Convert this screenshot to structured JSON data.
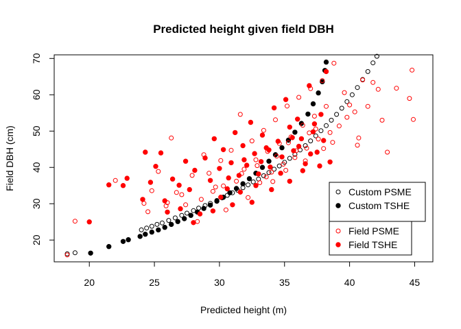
{
  "chart_data": {
    "type": "scatter",
    "title": "Predicted height given field DBH",
    "xlabel": "Predicted height (m)",
    "ylabel": "Field DBH (cm)",
    "xlim": [
      17.3,
      46.4
    ],
    "ylim": [
      14.0,
      71.0
    ],
    "xticks": [
      20,
      25,
      30,
      35,
      40,
      45
    ],
    "yticks": [
      20,
      30,
      40,
      50,
      60,
      70
    ],
    "grid": false,
    "legend_position": "bottom-right",
    "series": [
      {
        "name": "Custom PSME",
        "marker": "open-circle",
        "color": "#000000",
        "points": [
          [
            18.3,
            16.2
          ],
          [
            18.9,
            16.5
          ],
          [
            24.0,
            22.8
          ],
          [
            24.4,
            23.3
          ],
          [
            24.8,
            23.8
          ],
          [
            25.2,
            24.3
          ],
          [
            25.6,
            24.7
          ],
          [
            26.1,
            25.4
          ],
          [
            26.6,
            26.1
          ],
          [
            27.1,
            26.8
          ],
          [
            27.5,
            27.4
          ],
          [
            28.0,
            28.1
          ],
          [
            28.4,
            28.8
          ],
          [
            28.9,
            29.5
          ],
          [
            29.3,
            30.1
          ],
          [
            29.8,
            30.9
          ],
          [
            30.2,
            31.6
          ],
          [
            30.6,
            32.3
          ],
          [
            31.0,
            33.0
          ],
          [
            31.4,
            33.7
          ],
          [
            31.8,
            34.4
          ],
          [
            32.2,
            35.2
          ],
          [
            32.6,
            36.0
          ],
          [
            33.0,
            36.8
          ],
          [
            33.4,
            37.7
          ],
          [
            33.8,
            38.6
          ],
          [
            34.2,
            39.5
          ],
          [
            34.6,
            40.4
          ],
          [
            35.0,
            41.4
          ],
          [
            35.4,
            42.5
          ],
          [
            35.8,
            43.6
          ],
          [
            36.2,
            44.8
          ],
          [
            36.6,
            46.0
          ],
          [
            37.0,
            47.3
          ],
          [
            37.4,
            48.7
          ],
          [
            37.8,
            50.1
          ],
          [
            38.2,
            51.5
          ],
          [
            38.6,
            53.0
          ],
          [
            39.0,
            54.6
          ],
          [
            39.4,
            56.3
          ],
          [
            39.8,
            58.1
          ],
          [
            40.2,
            60.0
          ],
          [
            40.6,
            62.0
          ],
          [
            41.0,
            64.2
          ],
          [
            41.4,
            66.4
          ],
          [
            41.8,
            68.8
          ],
          [
            42.1,
            70.6
          ]
        ]
      },
      {
        "name": "Custom TSHE",
        "marker": "filled-circle",
        "color": "#000000",
        "points": [
          [
            20.1,
            16.4
          ],
          [
            21.5,
            18.2
          ],
          [
            22.6,
            19.6
          ],
          [
            23.0,
            20.1
          ],
          [
            23.9,
            21.0
          ],
          [
            24.3,
            21.6
          ],
          [
            24.8,
            22.2
          ],
          [
            25.3,
            22.8
          ],
          [
            25.8,
            23.5
          ],
          [
            26.3,
            24.3
          ],
          [
            26.8,
            25.1
          ],
          [
            27.3,
            25.9
          ],
          [
            27.8,
            26.8
          ],
          [
            28.3,
            27.7
          ],
          [
            28.8,
            28.7
          ],
          [
            29.3,
            29.6
          ],
          [
            29.8,
            30.7
          ],
          [
            30.3,
            31.8
          ],
          [
            30.8,
            33.0
          ],
          [
            31.3,
            34.2
          ],
          [
            31.8,
            35.5
          ],
          [
            32.3,
            36.9
          ],
          [
            32.8,
            38.4
          ],
          [
            33.3,
            40.0
          ],
          [
            33.8,
            41.7
          ],
          [
            34.3,
            43.5
          ],
          [
            34.8,
            45.4
          ],
          [
            35.3,
            47.5
          ],
          [
            35.8,
            49.7
          ],
          [
            36.3,
            52.1
          ],
          [
            36.8,
            54.7
          ],
          [
            37.2,
            57.5
          ],
          [
            37.6,
            60.5
          ],
          [
            37.9,
            63.6
          ],
          [
            38.1,
            66.7
          ],
          [
            38.2,
            69.0
          ]
        ]
      },
      {
        "name": "Field PSME",
        "marker": "open-circle",
        "color": "#ff0000",
        "points": [
          [
            18.3,
            15.9
          ],
          [
            18.9,
            25.2
          ],
          [
            22.0,
            36.4
          ],
          [
            24.2,
            30.1
          ],
          [
            24.5,
            27.8
          ],
          [
            24.8,
            33.6
          ],
          [
            25.3,
            38.9
          ],
          [
            25.9,
            29.4
          ],
          [
            26.3,
            48.1
          ],
          [
            26.7,
            33.1
          ],
          [
            27.4,
            29.7
          ],
          [
            27.9,
            37.8
          ],
          [
            28.3,
            25.1
          ],
          [
            28.8,
            43.5
          ],
          [
            29.2,
            38.4
          ],
          [
            29.7,
            34.6
          ],
          [
            30.1,
            41.9
          ],
          [
            30.5,
            28.3
          ],
          [
            30.9,
            44.7
          ],
          [
            31.3,
            36.2
          ],
          [
            31.6,
            54.6
          ],
          [
            31.9,
            39.5
          ],
          [
            32.2,
            31.7
          ],
          [
            32.5,
            47.3
          ],
          [
            32.8,
            42.1
          ],
          [
            33.1,
            35.8
          ],
          [
            33.4,
            50.2
          ],
          [
            33.7,
            44.4
          ],
          [
            34.0,
            38.7
          ],
          [
            34.3,
            53.1
          ],
          [
            34.6,
            46.6
          ],
          [
            34.9,
            40.9
          ],
          [
            35.2,
            56.9
          ],
          [
            35.5,
            48.4
          ],
          [
            35.8,
            42.7
          ],
          [
            36.1,
            59.3
          ],
          [
            36.4,
            51.6
          ],
          [
            36.7,
            45.3
          ],
          [
            37.0,
            61.7
          ],
          [
            37.3,
            54.1
          ],
          [
            37.6,
            47.8
          ],
          [
            37.9,
            63.9
          ],
          [
            38.2,
            56.8
          ],
          [
            38.5,
            49.6
          ],
          [
            38.8,
            68.7
          ],
          [
            39.2,
            51.4
          ],
          [
            39.6,
            60.6
          ],
          [
            40.0,
            57.2
          ],
          [
            40.4,
            55.3
          ],
          [
            40.7,
            48.1
          ],
          [
            41.0,
            64.1
          ],
          [
            41.4,
            56.8
          ],
          [
            41.8,
            63.4
          ],
          [
            42.2,
            61.5
          ],
          [
            42.5,
            53.0
          ],
          [
            42.9,
            44.2
          ],
          [
            43.6,
            61.8
          ],
          [
            44.8,
            66.8
          ],
          [
            44.9,
            53.2
          ],
          [
            44.6,
            59.0
          ],
          [
            30.3,
            34.9
          ],
          [
            31.7,
            38.3
          ],
          [
            32.9,
            40.5
          ],
          [
            33.6,
            37.4
          ],
          [
            34.4,
            43.1
          ],
          [
            35.1,
            39.2
          ],
          [
            35.9,
            44.6
          ],
          [
            36.6,
            41.8
          ],
          [
            37.4,
            50.6
          ],
          [
            38.0,
            45.2
          ],
          [
            38.7,
            46.9
          ],
          [
            39.8,
            53.8
          ],
          [
            40.6,
            46.1
          ],
          [
            34.1,
            36.1
          ],
          [
            35.3,
            46.8
          ],
          [
            36.9,
            49.5
          ],
          [
            28.6,
            31.2
          ],
          [
            29.5,
            33.4
          ],
          [
            27.1,
            32.5
          ],
          [
            26.0,
            30.3
          ]
        ]
      },
      {
        "name": "Field TSHE",
        "marker": "filled-circle",
        "color": "#ff0000",
        "points": [
          [
            20.0,
            25.0
          ],
          [
            21.5,
            35.2
          ],
          [
            22.6,
            35.0
          ],
          [
            22.9,
            37.0
          ],
          [
            24.1,
            31.2
          ],
          [
            24.3,
            44.2
          ],
          [
            24.7,
            35.9
          ],
          [
            25.1,
            40.3
          ],
          [
            25.5,
            44.0
          ],
          [
            25.8,
            30.8
          ],
          [
            26.4,
            36.8
          ],
          [
            26.9,
            35.1
          ],
          [
            27.4,
            41.7
          ],
          [
            27.7,
            33.9
          ],
          [
            28.1,
            39.2
          ],
          [
            28.5,
            27.2
          ],
          [
            28.9,
            42.6
          ],
          [
            29.3,
            36.4
          ],
          [
            29.6,
            47.9
          ],
          [
            30.0,
            39.7
          ],
          [
            30.3,
            44.9
          ],
          [
            30.6,
            34.1
          ],
          [
            30.9,
            41.3
          ],
          [
            31.2,
            49.6
          ],
          [
            31.5,
            37.8
          ],
          [
            31.8,
            46.0
          ],
          [
            32.1,
            40.6
          ],
          [
            32.4,
            52.4
          ],
          [
            32.7,
            43.8
          ],
          [
            33.0,
            38.2
          ],
          [
            33.3,
            48.9
          ],
          [
            33.6,
            45.4
          ],
          [
            33.9,
            40.1
          ],
          [
            34.2,
            56.4
          ],
          [
            34.5,
            47.2
          ],
          [
            34.8,
            42.9
          ],
          [
            35.1,
            58.7
          ],
          [
            35.4,
            51.1
          ],
          [
            35.7,
            44.6
          ],
          [
            36.0,
            53.3
          ],
          [
            36.3,
            47.9
          ],
          [
            36.6,
            41.0
          ],
          [
            36.9,
            62.5
          ],
          [
            37.2,
            49.8
          ],
          [
            37.5,
            44.2
          ],
          [
            37.8,
            54.6
          ],
          [
            38.2,
            66.4
          ],
          [
            37.0,
            43.7
          ],
          [
            37.7,
            40.4
          ],
          [
            38.5,
            41.5
          ],
          [
            35.4,
            36.2
          ],
          [
            34.0,
            33.9
          ],
          [
            32.5,
            30.4
          ],
          [
            31.0,
            29.7
          ],
          [
            29.5,
            28.0
          ],
          [
            28.0,
            24.8
          ],
          [
            27.0,
            28.6
          ],
          [
            26.0,
            27.7
          ],
          [
            30.7,
            37.1
          ],
          [
            31.6,
            33.2
          ],
          [
            32.8,
            35.0
          ],
          [
            33.8,
            44.8
          ],
          [
            34.7,
            38.4
          ],
          [
            35.6,
            48.2
          ],
          [
            36.4,
            39.1
          ],
          [
            37.3,
            52.0
          ],
          [
            38.0,
            47.4
          ],
          [
            36.1,
            45.8
          ],
          [
            33.2,
            41.6
          ],
          [
            31.9,
            42.1
          ],
          [
            30.1,
            31.8
          ]
        ]
      }
    ],
    "legend": [
      {
        "group": 1,
        "label": "Custom PSME",
        "marker": "open-circle",
        "color": "#000000"
      },
      {
        "group": 1,
        "label": "Custom TSHE",
        "marker": "filled-circle",
        "color": "#000000"
      },
      {
        "group": 2,
        "label": "Field PSME",
        "marker": "open-circle",
        "color": "#ff0000"
      },
      {
        "group": 2,
        "label": "Field TSHE",
        "marker": "filled-circle",
        "color": "#ff0000"
      }
    ]
  }
}
